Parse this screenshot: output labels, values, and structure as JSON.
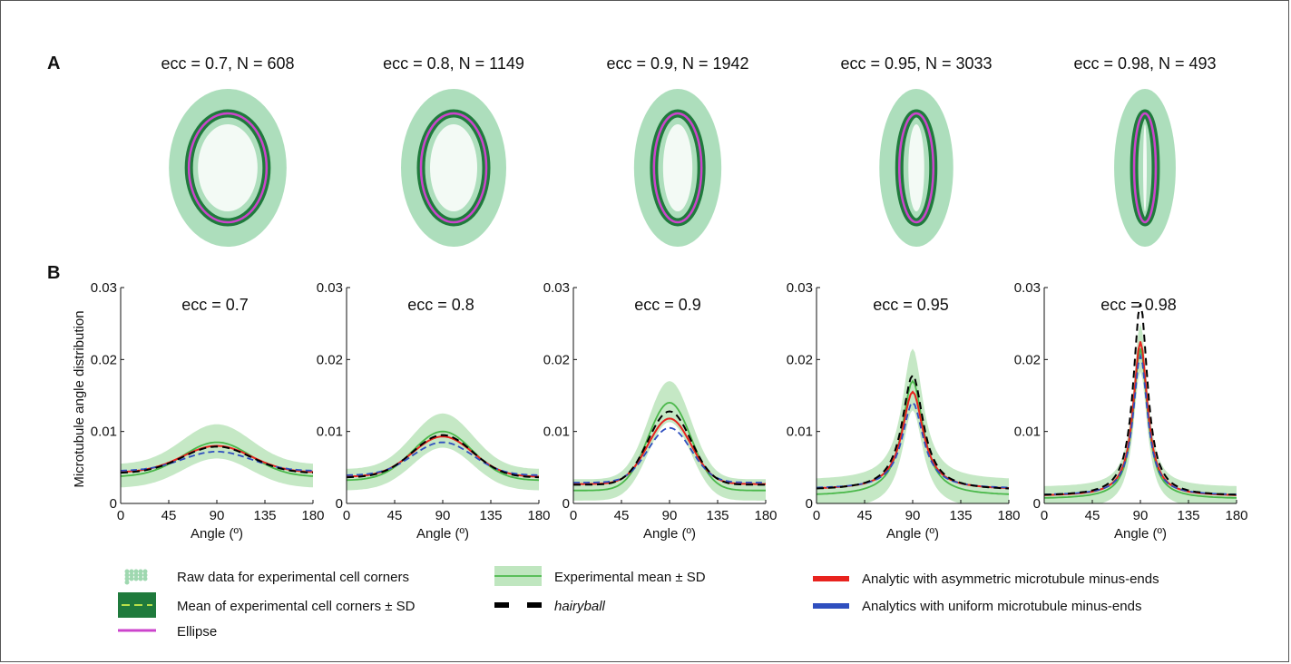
{
  "panel_labels": {
    "a": "A",
    "b": "B"
  },
  "colors": {
    "raw": "#9fd8b0",
    "band_dark": "#1f7a3c",
    "band_dash": "#b8e04a",
    "ellipse": "#cc44cc",
    "exp_line": "#4bb84b",
    "exp_band": "#bfe6bf",
    "hairyball": "#000000",
    "asym": "#e8231e",
    "uniform": "#2f4fbf"
  },
  "panel_a": {
    "shapes": [
      {
        "title": "ecc = 0.7, N =  608",
        "ecc": 0.7,
        "n": 608
      },
      {
        "title": "ecc = 0.8, N = 1149",
        "ecc": 0.8,
        "n": 1149
      },
      {
        "title": "ecc = 0.9, N = 1942",
        "ecc": 0.9,
        "n": 1942
      },
      {
        "title": "ecc = 0.95, N = 3033",
        "ecc": 0.95,
        "n": 3033
      },
      {
        "title": "ecc = 0.98, N = 493",
        "ecc": 0.98,
        "n": 493
      }
    ]
  },
  "chart_data": [
    {
      "type": "line",
      "title": "ecc = 0.7",
      "xlabel": "Angle (º)",
      "ylabel": "Microtubule angle distribution",
      "x_ticks": [
        "0",
        "45",
        "90",
        "135",
        "180"
      ],
      "y_ticks": [
        "0",
        "0.01",
        "0.02",
        "0.03"
      ],
      "xlim": [
        0,
        180
      ],
      "ylim": [
        0,
        0.03
      ],
      "peak_x": 90,
      "series": [
        {
          "name": "Experimental mean ± SD",
          "peak": 0.0085,
          "base": 0.0037,
          "sd": 0.0025
        },
        {
          "name": "hairyball",
          "peak": 0.0079,
          "base": 0.0042
        },
        {
          "name": "Analytic with asymmetric microtubule minus-ends",
          "peak": 0.008,
          "base": 0.0043
        },
        {
          "name": "Analytics with uniform microtubule minus-ends",
          "peak": 0.0072,
          "base": 0.0045
        }
      ]
    },
    {
      "type": "line",
      "title": "ecc = 0.8",
      "xlabel": "Angle (º)",
      "ylabel": "",
      "x_ticks": [
        "0",
        "45",
        "90",
        "135",
        "180"
      ],
      "y_ticks": [
        "0",
        "0.01",
        "0.02",
        "0.03"
      ],
      "xlim": [
        0,
        180
      ],
      "ylim": [
        0,
        0.03
      ],
      "peak_x": 90,
      "series": [
        {
          "name": "Experimental mean ± SD",
          "peak": 0.01,
          "base": 0.0032,
          "sd": 0.0025
        },
        {
          "name": "hairyball",
          "peak": 0.0095,
          "base": 0.0036
        },
        {
          "name": "Analytic with asymmetric microtubule minus-ends",
          "peak": 0.0093,
          "base": 0.0037
        },
        {
          "name": "Analytics with uniform microtubule minus-ends",
          "peak": 0.0085,
          "base": 0.0039
        }
      ]
    },
    {
      "type": "line",
      "title": "ecc = 0.9",
      "xlabel": "Angle (º)",
      "ylabel": "",
      "x_ticks": [
        "0",
        "45",
        "90",
        "135",
        "180"
      ],
      "y_ticks": [
        "0",
        "0.01",
        "0.02",
        "0.03"
      ],
      "xlim": [
        0,
        180
      ],
      "ylim": [
        0,
        0.03
      ],
      "peak_x": 90,
      "series": [
        {
          "name": "Experimental mean ± SD",
          "peak": 0.014,
          "base": 0.0018,
          "sd": 0.003
        },
        {
          "name": "hairyball",
          "peak": 0.0128,
          "base": 0.0026
        },
        {
          "name": "Analytic with asymmetric microtubule minus-ends",
          "peak": 0.0118,
          "base": 0.0027
        },
        {
          "name": "Analytics with uniform microtubule minus-ends",
          "peak": 0.0105,
          "base": 0.0029
        }
      ]
    },
    {
      "type": "line",
      "title": "ecc = 0.95",
      "xlabel": "Angle (º)",
      "ylabel": "",
      "x_ticks": [
        "0",
        "45",
        "90",
        "135",
        "180"
      ],
      "y_ticks": [
        "0",
        "0.01",
        "0.02",
        "0.03"
      ],
      "xlim": [
        0,
        180
      ],
      "ylim": [
        0,
        0.03
      ],
      "peak_x": 90,
      "series": [
        {
          "name": "Experimental mean ± SD",
          "peak": 0.017,
          "base": 0.001,
          "sd": 0.0045
        },
        {
          "name": "hairyball",
          "peak": 0.0178,
          "base": 0.0018
        },
        {
          "name": "Analytic with asymmetric microtubule minus-ends",
          "peak": 0.0155,
          "base": 0.0019
        },
        {
          "name": "Analytics with uniform microtubule minus-ends",
          "peak": 0.014,
          "base": 0.002
        }
      ]
    },
    {
      "type": "line",
      "title": "ecc = 0.98",
      "xlabel": "Angle (º)",
      "ylabel": "",
      "x_ticks": [
        "0",
        "45",
        "90",
        "135",
        "180"
      ],
      "y_ticks": [
        "0",
        "0.01",
        "0.02",
        "0.03"
      ],
      "xlim": [
        0,
        180
      ],
      "ylim": [
        0,
        0.03
      ],
      "peak_x": 90,
      "series": [
        {
          "name": "Experimental mean ± SD",
          "peak": 0.0215,
          "base": 0.0006,
          "sd": 0.0035
        },
        {
          "name": "hairyball",
          "peak": 0.0278,
          "base": 0.001
        },
        {
          "name": "Analytic with asymmetric microtubule minus-ends",
          "peak": 0.0225,
          "base": 0.001
        },
        {
          "name": "Analytics with uniform microtubule minus-ends",
          "peak": 0.0205,
          "base": 0.0011
        }
      ]
    }
  ],
  "legend": {
    "items": [
      {
        "key": "raw",
        "label": "Raw data for experimental cell corners"
      },
      {
        "key": "band",
        "label": "Mean of experimental cell corners ± SD"
      },
      {
        "key": "ellipse",
        "label": "Ellipse"
      },
      {
        "key": "exp",
        "label": "Experimental mean ± SD"
      },
      {
        "key": "hairyball",
        "label": "hairyball"
      },
      {
        "key": "asym",
        "label": "Analytic with asymmetric microtubule minus-ends"
      },
      {
        "key": "uniform",
        "label": "Analytics with uniform microtubule minus-ends"
      }
    ]
  }
}
